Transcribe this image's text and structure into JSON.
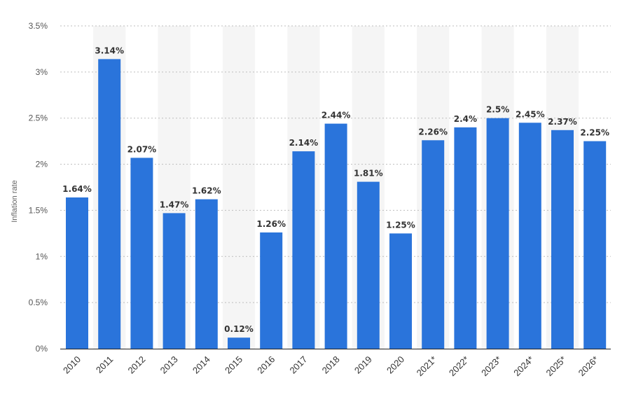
{
  "chart_data": {
    "type": "bar",
    "title": "",
    "xlabel": "",
    "ylabel": "Inflation rate",
    "ylim": [
      0,
      3.5
    ],
    "yticks": [
      0,
      0.5,
      1,
      1.5,
      2,
      2.5,
      3,
      3.5
    ],
    "ytick_labels": [
      "0%",
      "0.5%",
      "1%",
      "1.5%",
      "2%",
      "2.5%",
      "3%",
      "3.5%"
    ],
    "grid": true,
    "bar_color": "#2a74db",
    "categories": [
      "2010",
      "2011",
      "2012",
      "2013",
      "2014",
      "2015",
      "2016",
      "2017",
      "2018",
      "2019",
      "2020",
      "2021*",
      "2022*",
      "2023*",
      "2024*",
      "2025*",
      "2026*"
    ],
    "values": [
      1.64,
      3.14,
      2.07,
      1.47,
      1.62,
      0.12,
      1.26,
      2.14,
      2.44,
      1.81,
      1.25,
      2.26,
      2.4,
      2.5,
      2.45,
      2.37,
      2.25
    ],
    "value_labels": [
      "1.64%",
      "3.14%",
      "2.07%",
      "1.47%",
      "1.62%",
      "0.12%",
      "1.26%",
      "2.14%",
      "2.44%",
      "1.81%",
      "1.25%",
      "2.26%",
      "2.4%",
      "2.5%",
      "2.45%",
      "2.37%",
      "2.25%"
    ]
  }
}
